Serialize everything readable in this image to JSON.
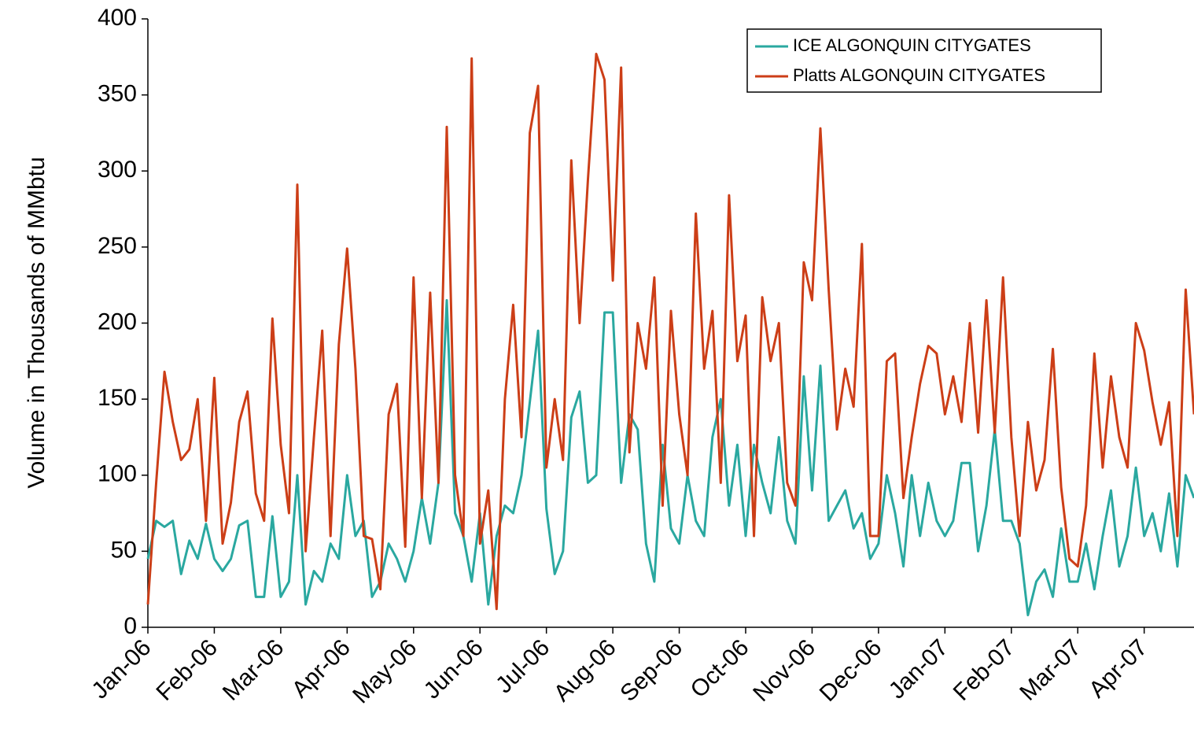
{
  "chart_data": {
    "type": "line",
    "y_label": "Volume in Thousands of MMbtu",
    "categories": [
      "Jan-06",
      null,
      null,
      null,
      null,
      null,
      null,
      null,
      "Feb-06",
      null,
      null,
      null,
      null,
      null,
      null,
      null,
      "Mar-06",
      null,
      null,
      null,
      null,
      null,
      null,
      null,
      "Apr-06",
      null,
      null,
      null,
      null,
      null,
      null,
      null,
      "May-06",
      null,
      null,
      null,
      null,
      null,
      null,
      null,
      "Jun-06",
      null,
      null,
      null,
      null,
      null,
      null,
      null,
      "Jul-06",
      null,
      null,
      null,
      null,
      null,
      null,
      null,
      "Aug-06",
      null,
      null,
      null,
      null,
      null,
      null,
      null,
      "Sep-06",
      null,
      null,
      null,
      null,
      null,
      null,
      null,
      "Oct-06",
      null,
      null,
      null,
      null,
      null,
      null,
      null,
      "Nov-06",
      null,
      null,
      null,
      null,
      null,
      null,
      null,
      "Dec-06",
      null,
      null,
      null,
      null,
      null,
      null,
      null,
      "Jan-07",
      null,
      null,
      null,
      null,
      null,
      null,
      null,
      "Feb-07",
      null,
      null,
      null,
      null,
      null,
      null,
      null,
      "Mar-07",
      null,
      null,
      null,
      null,
      null,
      null,
      null,
      "Apr-07",
      null,
      null,
      null,
      null,
      null,
      null
    ],
    "series": [
      {
        "name": "ICE ALGONQUIN CITYGATES",
        "color": "#2aa8a0",
        "values": [
          45,
          70,
          66,
          70,
          35,
          57,
          45,
          68,
          45,
          37,
          45,
          67,
          70,
          20,
          20,
          73,
          20,
          30,
          100,
          15,
          37,
          30,
          55,
          45,
          100,
          60,
          70,
          20,
          30,
          55,
          45,
          30,
          50,
          85,
          55,
          95,
          215,
          75,
          60,
          30,
          75,
          15,
          60,
          80,
          75,
          100,
          148,
          195,
          78,
          35,
          50,
          138,
          155,
          95,
          100,
          207,
          207,
          95,
          140,
          130,
          55,
          30,
          120,
          65,
          55,
          100,
          70,
          60,
          125,
          150,
          80,
          120,
          60,
          120,
          95,
          75,
          125,
          70,
          55,
          165,
          90,
          172,
          70,
          80,
          90,
          65,
          75,
          45,
          55,
          100,
          75,
          40,
          100,
          60,
          95,
          70,
          60,
          70,
          108,
          108,
          50,
          80,
          130,
          70,
          70,
          55,
          8,
          30,
          38,
          20,
          65,
          30,
          30,
          55,
          25,
          60,
          90,
          40,
          60,
          105,
          60,
          75,
          50,
          88,
          40,
          100,
          85
        ]
      },
      {
        "name": "Platts ALGONQUIN CITYGATES",
        "color": "#cc3e17",
        "values": [
          15,
          95,
          168,
          135,
          110,
          117,
          150,
          70,
          164,
          55,
          82,
          135,
          155,
          88,
          70,
          203,
          120,
          75,
          291,
          50,
          125,
          195,
          60,
          186,
          249,
          170,
          60,
          58,
          25,
          140,
          160,
          53,
          230,
          85,
          220,
          95,
          329,
          100,
          60,
          374,
          55,
          90,
          12,
          150,
          212,
          125,
          325,
          356,
          105,
          150,
          110,
          307,
          200,
          294,
          377,
          360,
          228,
          368,
          115,
          200,
          170,
          230,
          80,
          208,
          140,
          100,
          272,
          170,
          208,
          95,
          284,
          175,
          205,
          60,
          217,
          175,
          200,
          95,
          80,
          240,
          215,
          328,
          222,
          130,
          170,
          145,
          252,
          60,
          60,
          175,
          180,
          85,
          125,
          160,
          185,
          180,
          140,
          165,
          135,
          200,
          128,
          215,
          128,
          230,
          125,
          60,
          135,
          90,
          110,
          183,
          92,
          45,
          40,
          80,
          180,
          105,
          165,
          125,
          105,
          200,
          182,
          148,
          120,
          148,
          60,
          222,
          140
        ]
      }
    ],
    "ylim": [
      0,
      400
    ],
    "yticks": [
      0,
      50,
      100,
      150,
      200,
      250,
      300,
      350,
      400
    ],
    "legend": "top-right"
  }
}
